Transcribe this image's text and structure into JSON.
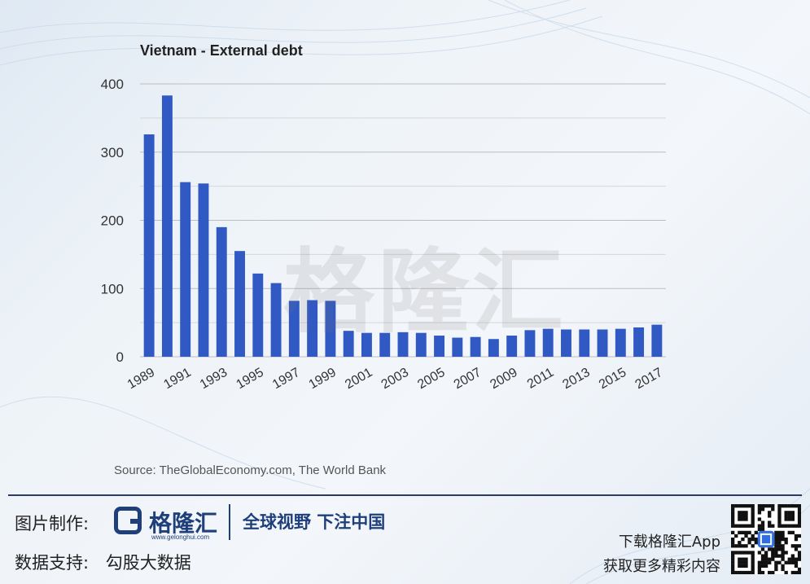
{
  "chart_data": {
    "type": "bar",
    "title": "Vietnam - External debt",
    "xlabel": "",
    "ylabel": "",
    "ylim": [
      0,
      400
    ],
    "yticks": [
      0,
      100,
      200,
      300,
      400
    ],
    "grid": true,
    "bar_color": "#3159c4",
    "categories": [
      "1989",
      "1990",
      "1991",
      "1992",
      "1993",
      "1994",
      "1995",
      "1996",
      "1997",
      "1998",
      "1999",
      "2000",
      "2001",
      "2002",
      "2003",
      "2004",
      "2005",
      "2006",
      "2007",
      "2008",
      "2009",
      "2010",
      "2011",
      "2012",
      "2013",
      "2014",
      "2015",
      "2016",
      "2017"
    ],
    "xtick_labels": [
      "1989",
      "1991",
      "1993",
      "1995",
      "1997",
      "1999",
      "2001",
      "2003",
      "2005",
      "2007",
      "2009",
      "2011",
      "2013",
      "2015",
      "2017"
    ],
    "values": [
      326,
      383,
      256,
      254,
      190,
      155,
      122,
      108,
      82,
      83,
      82,
      38,
      35,
      35,
      36,
      35,
      31,
      28,
      29,
      26,
      31,
      39,
      41,
      40,
      40,
      40,
      41,
      43,
      47
    ]
  },
  "source": "Source: TheGlobalEconomy.com, The World Bank",
  "watermark": "格隆汇",
  "footer": {
    "made_by_label": "图片制作:",
    "data_support_label": "数据支持:",
    "data_support_value": "勾股大数据",
    "logo_name": "格隆汇",
    "logo_url": "www.gelonghui.com",
    "slogan": "全球视野 下注中国",
    "app_line1": "下载格隆汇App",
    "app_line2": "获取更多精彩内容"
  },
  "colors": {
    "bar": "#3159c4",
    "brand": "#1f3f7a",
    "grid": "#c8c8c8"
  }
}
